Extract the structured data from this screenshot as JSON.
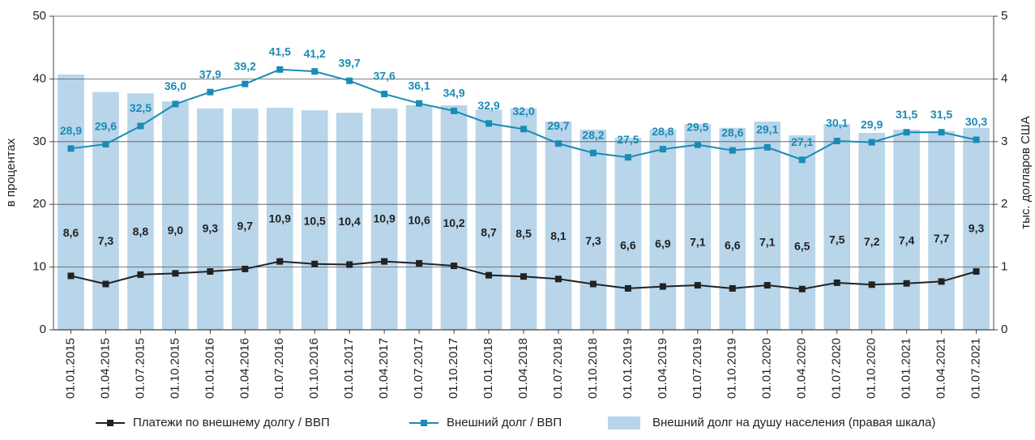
{
  "chart_data": {
    "type": "combo",
    "categories": [
      "01.01.2015",
      "01.04.2015",
      "01.07.2015",
      "01.10.2015",
      "01.01.2016",
      "01.04.2016",
      "01.07.2016",
      "01.10.2016",
      "01.01.2017",
      "01.04.2017",
      "01.07.2017",
      "01.10.2017",
      "01.01.2018",
      "01.04.2018",
      "01.07.2018",
      "01.10.2018",
      "01.01.2019",
      "01.04.2019",
      "01.07.2019",
      "01.10.2019",
      "01.01.2020",
      "01.04.2020",
      "01.07.2020",
      "01.10.2020",
      "01.01.2021",
      "01.04.2021",
      "01.07.2021"
    ],
    "ylabel": "в процентах",
    "y2label": "тыс. долларов США",
    "ylim": [
      0,
      50
    ],
    "yticks": [
      0,
      10,
      20,
      30,
      40,
      50
    ],
    "y2lim": [
      0,
      5
    ],
    "y2ticks": [
      0,
      1,
      2,
      3,
      4,
      5
    ],
    "grid": true,
    "legend": "bottom",
    "series": [
      {
        "name": "Внешний долг на душу населения (правая шкала)",
        "type": "bar",
        "axis": "y2",
        "color": "#b8d5ea",
        "values": [
          4.07,
          3.79,
          3.77,
          3.64,
          3.53,
          3.53,
          3.54,
          3.5,
          3.46,
          3.53,
          3.58,
          3.58,
          3.51,
          3.53,
          3.32,
          3.19,
          3.06,
          3.19,
          3.28,
          3.22,
          3.32,
          3.1,
          3.28,
          3.14,
          3.19,
          3.17,
          3.22
        ]
      },
      {
        "name": "Платежи по внешнему долгу / ВВП",
        "type": "line",
        "color": "#222222",
        "values": [
          8.6,
          7.3,
          8.8,
          9.0,
          9.3,
          9.7,
          10.9,
          10.5,
          10.4,
          10.9,
          10.6,
          10.2,
          8.7,
          8.5,
          8.1,
          7.3,
          6.6,
          6.9,
          7.1,
          6.6,
          7.1,
          6.5,
          7.5,
          7.2,
          7.4,
          7.7,
          9.3
        ],
        "value_labels": [
          "8,6",
          "7,3",
          "8,8",
          "9,0",
          "9,3",
          "9,7",
          "10,9",
          "10,5",
          "10,4",
          "10,9",
          "10,6",
          "10,2",
          "8,7",
          "8,5",
          "8,1",
          "7,3",
          "6,6",
          "6,9",
          "7,1",
          "6,6",
          "7,1",
          "6,5",
          "7,5",
          "7,2",
          "7,4",
          "7,7",
          "9,3"
        ]
      },
      {
        "name": "Внешний долг / ВВП",
        "type": "line",
        "color": "#1a8bb5",
        "values": [
          28.9,
          29.6,
          32.5,
          36.0,
          37.9,
          39.2,
          41.5,
          41.2,
          39.7,
          37.6,
          36.1,
          34.9,
          32.9,
          32.0,
          29.7,
          28.2,
          27.5,
          28.8,
          29.5,
          28.6,
          29.1,
          27.1,
          30.1,
          29.9,
          31.5,
          31.5,
          30.3
        ],
        "value_labels": [
          "28,9",
          "29,6",
          "32,5",
          "36,0",
          "37,9",
          "39,2",
          "41,5",
          "41,2",
          "39,7",
          "37,6",
          "36,1",
          "34,9",
          "32,9",
          "32,0",
          "29,7",
          "28,2",
          "27,5",
          "28,8",
          "29,5",
          "28,6",
          "29,1",
          "27,1",
          "30,1",
          "29,9",
          "31,5",
          "31,5",
          "30,3"
        ]
      }
    ]
  }
}
